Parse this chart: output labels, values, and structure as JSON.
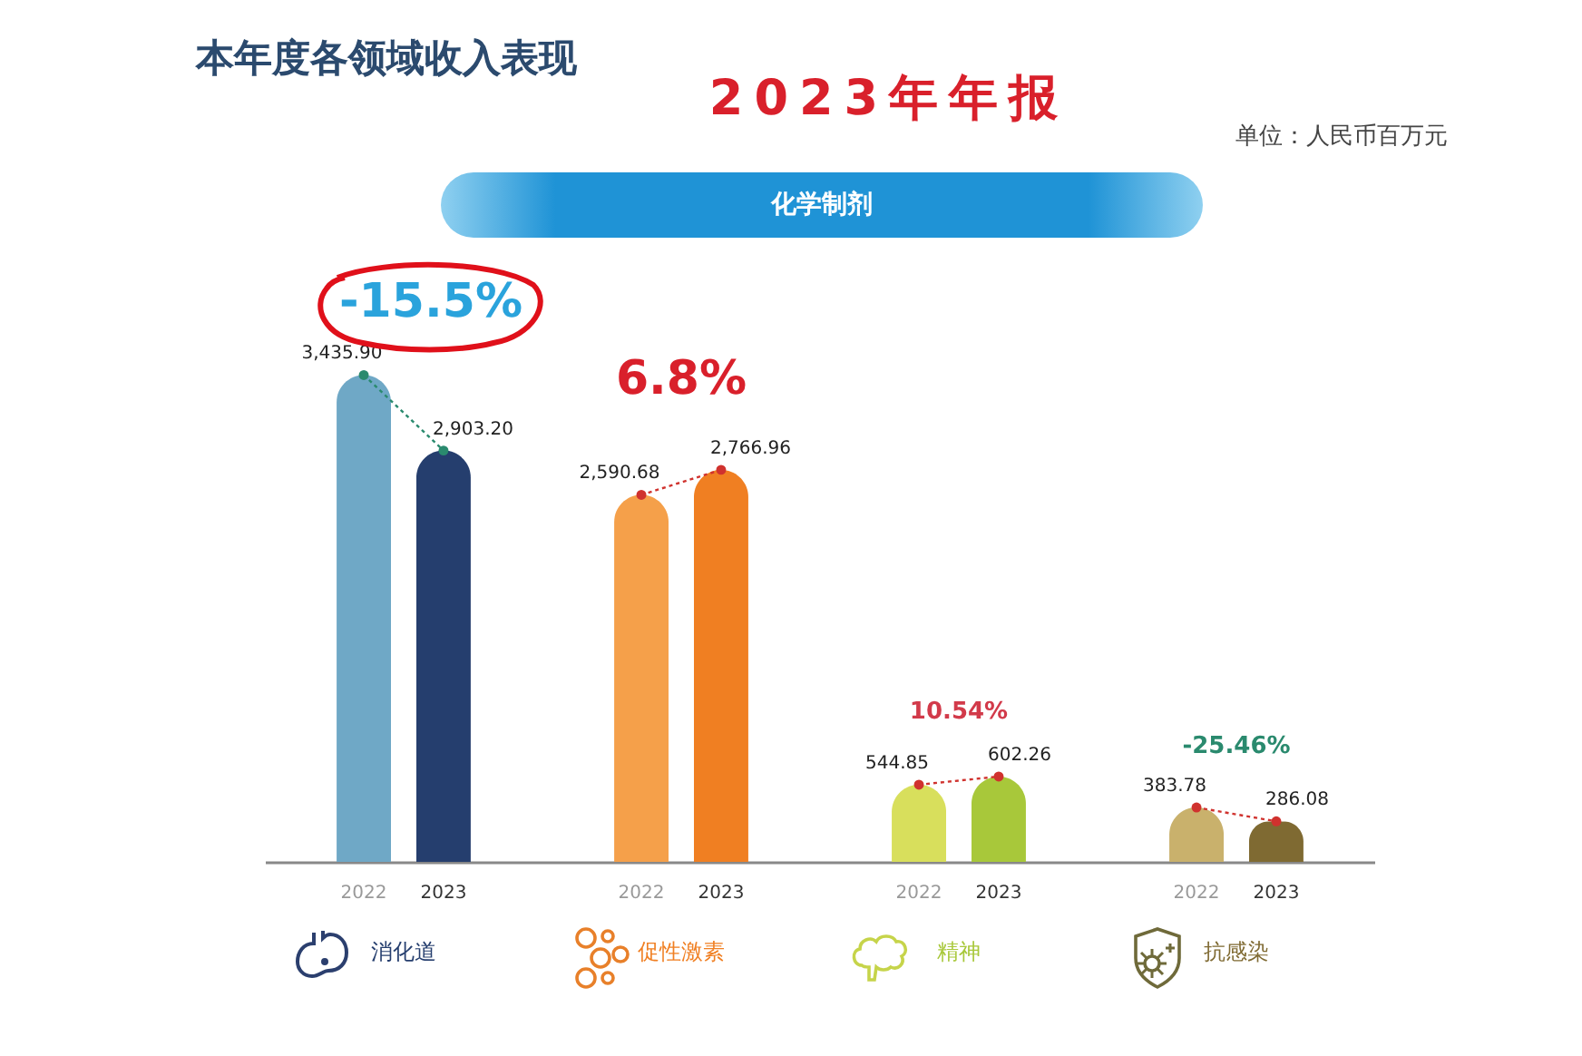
{
  "chart_data": {
    "type": "bar",
    "title": "本年度各领域收入表现",
    "subtitle": "2023年年报",
    "annotations": [
      "单位：人民币百万元",
      "化学制剂",
      "-15.5%",
      "6.8%",
      "10.54%",
      "-25.46%"
    ],
    "categories": [
      "消化道",
      "促性激素",
      "精神",
      "抗感染"
    ],
    "series": [
      {
        "name": "2022",
        "colors": [
          "#6fa8c6",
          "#f5a04a",
          "#d8df5c",
          "#c9b16c"
        ],
        "values": [
          3435.9,
          2590.68,
          544.85,
          383.78
        ],
        "value_labels": [
          "3,435.90",
          "2,590.68",
          "544.85",
          "383.78"
        ]
      },
      {
        "name": "2023",
        "colors": [
          "#253e6e",
          "#f07f22",
          "#a8c83a",
          "#7f6a32"
        ],
        "values": [
          2903.2,
          2766.96,
          602.26,
          286.08
        ],
        "value_labels": [
          "2,903.20",
          "2,766.96",
          "602.26",
          "286.08"
        ]
      }
    ]
  }
}
